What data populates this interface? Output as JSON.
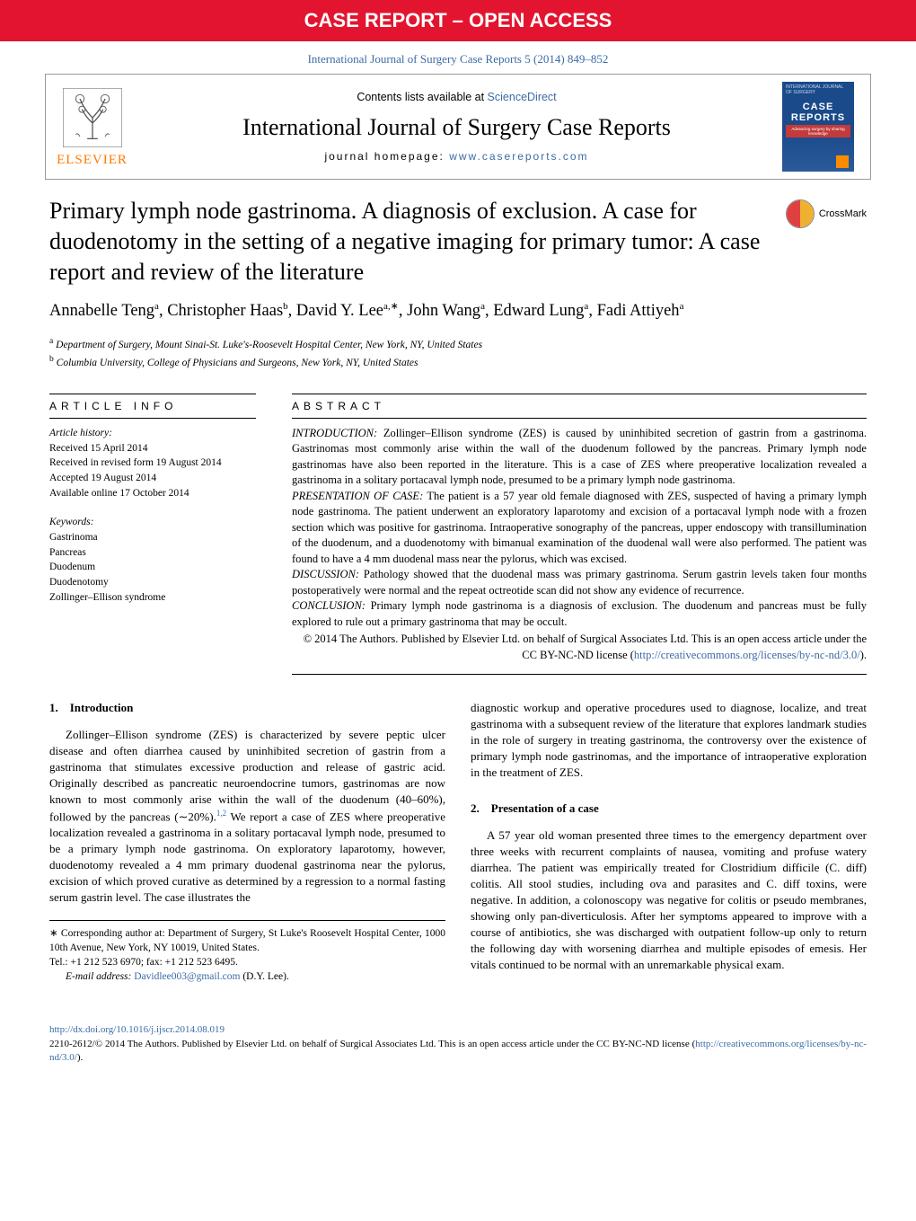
{
  "banner": "CASE REPORT – OPEN ACCESS",
  "citation": "International Journal of Surgery Case Reports 5 (2014) 849–852",
  "header": {
    "elsevier": "ELSEVIER",
    "contents_prefix": "Contents lists available at ",
    "contents_link": "ScienceDirect",
    "journal": "International Journal of Surgery Case Reports",
    "homepage_label": "journal homepage: ",
    "homepage_url": "www.casereports.com",
    "cover": {
      "top": "INTERNATIONAL JOURNAL OF SURGERY",
      "title": "CASE REPORTS",
      "sub": "Advancing surgery by sharing knowledge"
    }
  },
  "crossmark": "CrossMark",
  "title": "Primary lymph node gastrinoma. A diagnosis of exclusion. A case for duodenotomy in the setting of a negative imaging for primary tumor: A case report and review of the literature",
  "authors_html": "Annabelle Teng<sup>a</sup>, Christopher Haas<sup>b</sup>, David Y. Lee<sup>a,∗</sup>, John Wang<sup>a</sup>, Edward Lung<sup>a</sup>, Fadi Attiyeh<sup>a</sup>",
  "affiliations": {
    "a": "Department of Surgery, Mount Sinai-St. Luke's-Roosevelt Hospital Center, New York, NY, United States",
    "b": "Columbia University, College of Physicians and Surgeons, New York, NY, United States"
  },
  "article_info": {
    "head": "ARTICLE INFO",
    "history_head": "Article history:",
    "history": [
      "Received 15 April 2014",
      "Received in revised form 19 August 2014",
      "Accepted 19 August 2014",
      "Available online 17 October 2014"
    ],
    "keywords_head": "Keywords:",
    "keywords": [
      "Gastrinoma",
      "Pancreas",
      "Duodenum",
      "Duodenotomy",
      "Zollinger–Ellison syndrome"
    ]
  },
  "abstract": {
    "head": "ABSTRACT",
    "intro_label": "INTRODUCTION:",
    "intro": " Zollinger–Ellison syndrome (ZES) is caused by uninhibited secretion of gastrin from a gastrinoma. Gastrinomas most commonly arise within the wall of the duodenum followed by the pancreas. Primary lymph node gastrinomas have also been reported in the literature. This is a case of ZES where preoperative localization revealed a gastrinoma in a solitary portacaval lymph node, presumed to be a primary lymph node gastrinoma.",
    "case_label": "PRESENTATION OF CASE:",
    "case": " The patient is a 57 year old female diagnosed with ZES, suspected of having a primary lymph node gastrinoma. The patient underwent an exploratory laparotomy and excision of a portacaval lymph node with a frozen section which was positive for gastrinoma. Intraoperative sonography of the pancreas, upper endoscopy with transillumination of the duodenum, and a duodenotomy with bimanual examination of the duodenal wall were also performed. The patient was found to have a 4 mm duodenal mass near the pylorus, which was excised.",
    "disc_label": "DISCUSSION:",
    "disc": " Pathology showed that the duodenal mass was primary gastrinoma. Serum gastrin levels taken four months postoperatively were normal and the repeat octreotide scan did not show any evidence of recurrence.",
    "conc_label": "CONCLUSION:",
    "conc": " Primary lymph node gastrinoma is a diagnosis of exclusion. The duodenum and pancreas must be fully explored to rule out a primary gastrinoma that may be occult.",
    "copyright": "© 2014 The Authors. Published by Elsevier Ltd. on behalf of Surgical Associates Ltd. This is an open access article under the CC BY-NC-ND license (",
    "license_url": "http://creativecommons.org/licenses/by-nc-nd/3.0/",
    "copyright_close": ")."
  },
  "sections": {
    "s1_head": "1. Introduction",
    "s1_p1": "Zollinger–Ellison syndrome (ZES) is characterized by severe peptic ulcer disease and often diarrhea caused by uninhibited secretion of gastrin from a gastrinoma that stimulates excessive production and release of gastric acid. Originally described as pancreatic neuroendocrine tumors, gastrinomas are now known to most commonly arise within the wall of the duodenum (40–60%), followed by the pancreas (∼20%).",
    "s1_ref": "1,2",
    "s1_p1b": " We report a case of ZES where preoperative localization revealed a gastrinoma in a solitary portacaval lymph node, presumed to be a primary lymph node gastrinoma. On exploratory laparotomy, however, duodenotomy revealed a 4 mm primary duodenal gastrinoma near the pylorus, excision of which proved curative as determined by a regression to a normal fasting serum gastrin level. The case illustrates the ",
    "s1_p1c": "diagnostic workup and operative procedures used to diagnose, localize, and treat gastrinoma with a subsequent review of the literature that explores landmark studies in the role of surgery in treating gastrinoma, the controversy over the existence of primary lymph node gastrinomas, and the importance of intraoperative exploration in the treatment of ZES.",
    "s2_head": "2. Presentation of a case",
    "s2_p1": "A 57 year old woman presented three times to the emergency department over three weeks with recurrent complaints of nausea, vomiting and profuse watery diarrhea. The patient was empirically treated for Clostridium difficile (C. diff) colitis. All stool studies, including ova and parasites and C. diff toxins, were negative. In addition, a colonoscopy was negative for colitis or pseudo membranes, showing only pan-diverticulosis. After her symptoms appeared to improve with a course of antibiotics, she was discharged with outpatient follow-up only to return the following day with worsening diarrhea and multiple episodes of emesis. Her vitals continued to be normal with an unremarkable physical exam."
  },
  "footnote": {
    "corr": "∗ Corresponding author at: Department of Surgery, St Luke's Roosevelt Hospital Center, 1000 10th Avenue, New York, NY 10019, United States.",
    "tel": "Tel.: +1 212 523 6970; fax: +1 212 523 6495.",
    "email_label": "E-mail address: ",
    "email": "Davidlee003@gmail.com",
    "email_suffix": " (D.Y. Lee)."
  },
  "footer": {
    "doi": "http://dx.doi.org/10.1016/j.ijscr.2014.08.019",
    "line": "2210-2612/© 2014 The Authors. Published by Elsevier Ltd. on behalf of Surgical Associates Ltd. This is an open access article under the CC BY-NC-ND license (",
    "license_url": "http://creativecommons.org/licenses/by-nc-nd/3.0/",
    "close": ")."
  },
  "colors": {
    "banner_bg": "#e3142f",
    "link": "#3a6ba5",
    "elsevier_orange": "#ff7a00"
  }
}
